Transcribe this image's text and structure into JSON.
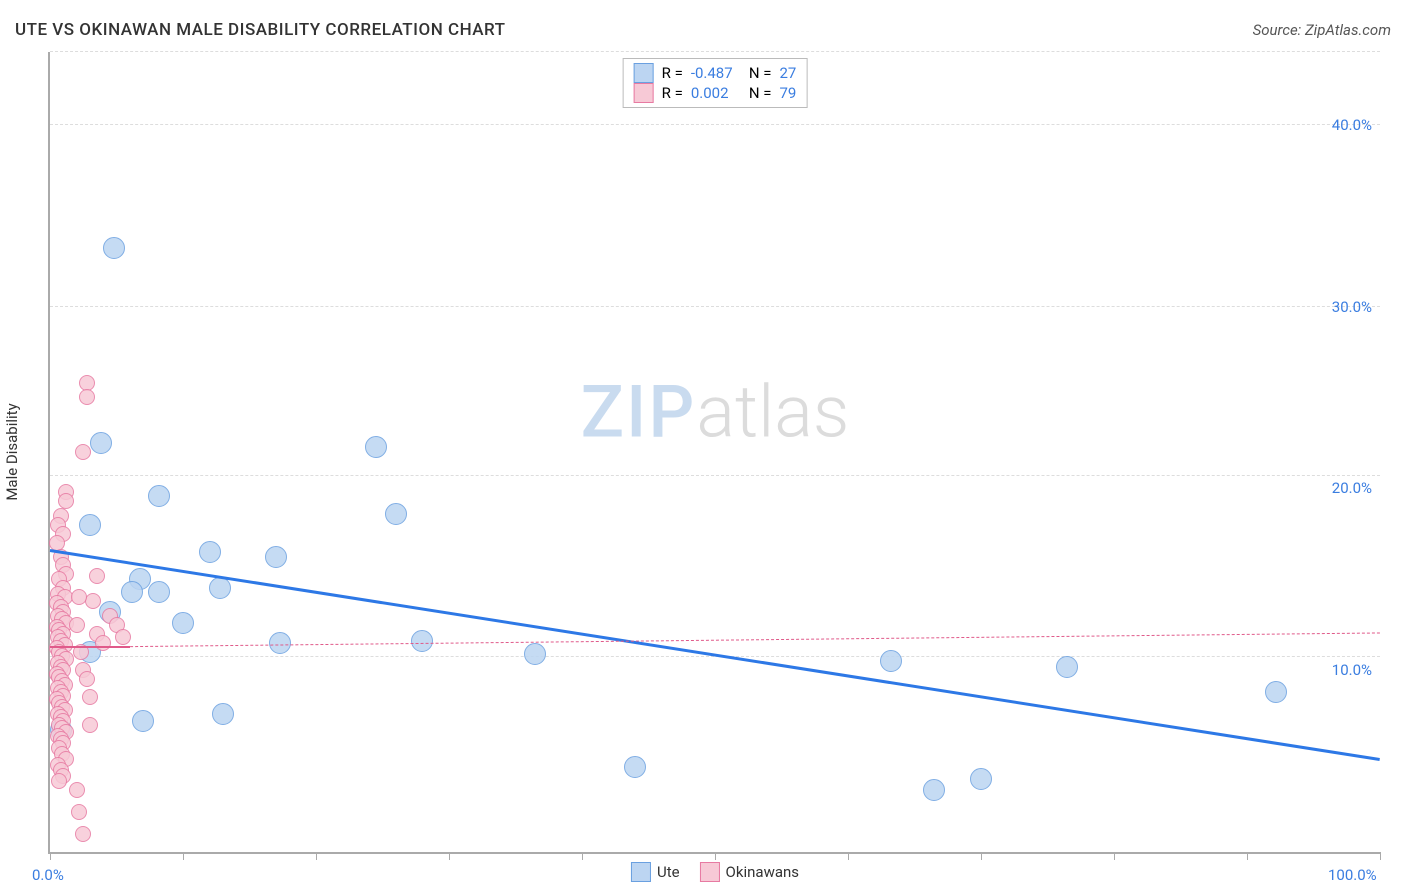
{
  "header": {
    "title": "UTE VS OKINAWAN MALE DISABILITY CORRELATION CHART",
    "source": "Source: ZipAtlas.com"
  },
  "watermark": {
    "zip": "ZIP",
    "atlas": "atlas"
  },
  "chart": {
    "type": "scatter",
    "xlim": [
      0,
      100
    ],
    "ylim": [
      0,
      44
    ],
    "x_ticks": [
      0,
      10,
      20,
      30,
      40,
      50,
      60,
      70,
      80,
      90,
      100
    ],
    "y_gridlines": [
      10.7,
      20.7,
      30.0,
      40.0,
      44.0
    ],
    "x_axis_labels": [
      {
        "val": 0,
        "text": "0.0%"
      },
      {
        "val": 100,
        "text": "100.0%"
      }
    ],
    "y_axis_labels": [
      {
        "val": 10,
        "text": "10.0%"
      },
      {
        "val": 20,
        "text": "20.0%"
      },
      {
        "val": 30,
        "text": "30.0%"
      },
      {
        "val": 40,
        "text": "40.0%"
      }
    ],
    "ylabel": "Male Disability",
    "axis_label_color": "#3a7de0",
    "colors": {
      "ute_fill": "#bcd5f2",
      "ute_stroke": "#6aa0e0",
      "oki_fill": "#f7c9d6",
      "oki_stroke": "#e77aa2",
      "ute_line": "#2d78e6",
      "oki_line": "#e05a8a"
    },
    "legend_top": {
      "rows": [
        {
          "color_key": "ute",
          "r_label": "R =",
          "r_val": "-0.487",
          "n_label": "N =",
          "n_val": "27"
        },
        {
          "color_key": "oki",
          "r_label": "R =",
          "r_val": "0.002",
          "n_label": "N =",
          "n_val": "79"
        }
      ]
    },
    "legend_bottom": [
      {
        "color_key": "ute",
        "label": "Ute"
      },
      {
        "color_key": "oki",
        "label": "Okinawans"
      }
    ],
    "trend_lines": [
      {
        "series": "ute",
        "x1": 0,
        "y1": 16.5,
        "x2": 100,
        "y2": 5.0,
        "width": 3,
        "dash": false
      },
      {
        "series": "oki",
        "x1": 0,
        "y1": 11.2,
        "x2": 100,
        "y2": 12.0,
        "width": 1,
        "dash": true
      },
      {
        "series": "oki",
        "x1": 0,
        "y1": 11.2,
        "x2": 6,
        "y2": 11.2,
        "width": 2.5,
        "dash": false
      }
    ],
    "series": [
      {
        "name": "ute",
        "radius": 10,
        "points": [
          [
            4.8,
            33.2
          ],
          [
            3.8,
            22.5
          ],
          [
            8.2,
            19.6
          ],
          [
            6.8,
            15.0
          ],
          [
            3.0,
            18.0
          ],
          [
            6.2,
            14.3
          ],
          [
            8.2,
            14.3
          ],
          [
            12.0,
            16.5
          ],
          [
            12.8,
            14.5
          ],
          [
            17.0,
            16.2
          ],
          [
            24.5,
            22.3
          ],
          [
            26.0,
            18.6
          ],
          [
            10.0,
            12.6
          ],
          [
            17.3,
            11.5
          ],
          [
            3.0,
            11.0
          ],
          [
            4.5,
            13.2
          ],
          [
            7.0,
            7.2
          ],
          [
            13.0,
            7.6
          ],
          [
            28.0,
            11.6
          ],
          [
            36.5,
            10.9
          ],
          [
            0.8,
            6.7
          ],
          [
            44.0,
            4.7
          ],
          [
            63.2,
            10.5
          ],
          [
            76.5,
            10.2
          ],
          [
            92.2,
            8.8
          ],
          [
            70.0,
            4.0
          ],
          [
            66.5,
            3.4
          ]
        ]
      },
      {
        "name": "oki",
        "radius": 7,
        "points": [
          [
            2.8,
            25.8
          ],
          [
            2.8,
            25.0
          ],
          [
            2.5,
            22.0
          ],
          [
            1.2,
            19.8
          ],
          [
            1.2,
            19.3
          ],
          [
            0.8,
            18.5
          ],
          [
            0.6,
            18.0
          ],
          [
            1.0,
            17.5
          ],
          [
            0.5,
            17.0
          ],
          [
            0.8,
            16.2
          ],
          [
            1.0,
            15.8
          ],
          [
            1.2,
            15.3
          ],
          [
            0.7,
            15.0
          ],
          [
            1.0,
            14.5
          ],
          [
            0.6,
            14.2
          ],
          [
            1.1,
            14.0
          ],
          [
            0.5,
            13.7
          ],
          [
            0.8,
            13.5
          ],
          [
            1.0,
            13.2
          ],
          [
            0.6,
            13.0
          ],
          [
            0.9,
            12.8
          ],
          [
            1.2,
            12.6
          ],
          [
            0.5,
            12.4
          ],
          [
            0.7,
            12.2
          ],
          [
            1.0,
            12.0
          ],
          [
            0.6,
            11.8
          ],
          [
            0.8,
            11.6
          ],
          [
            1.1,
            11.4
          ],
          [
            0.5,
            11.2
          ],
          [
            0.7,
            11.0
          ],
          [
            0.9,
            10.8
          ],
          [
            1.2,
            10.6
          ],
          [
            0.6,
            10.4
          ],
          [
            0.8,
            10.2
          ],
          [
            1.0,
            10.0
          ],
          [
            0.5,
            9.8
          ],
          [
            0.7,
            9.6
          ],
          [
            0.9,
            9.4
          ],
          [
            1.1,
            9.2
          ],
          [
            0.6,
            9.0
          ],
          [
            0.8,
            8.8
          ],
          [
            1.0,
            8.6
          ],
          [
            0.5,
            8.4
          ],
          [
            0.7,
            8.2
          ],
          [
            0.9,
            8.0
          ],
          [
            1.1,
            7.8
          ],
          [
            0.6,
            7.6
          ],
          [
            0.8,
            7.4
          ],
          [
            1.0,
            7.2
          ],
          [
            0.7,
            7.0
          ],
          [
            0.9,
            6.8
          ],
          [
            1.2,
            6.6
          ],
          [
            0.6,
            6.4
          ],
          [
            0.8,
            6.2
          ],
          [
            1.0,
            6.0
          ],
          [
            0.7,
            5.7
          ],
          [
            0.9,
            5.4
          ],
          [
            1.2,
            5.1
          ],
          [
            0.6,
            4.8
          ],
          [
            0.8,
            4.5
          ],
          [
            1.0,
            4.2
          ],
          [
            0.7,
            3.9
          ],
          [
            2.0,
            3.4
          ],
          [
            2.2,
            2.2
          ],
          [
            2.5,
            1.0
          ],
          [
            2.0,
            12.5
          ],
          [
            2.3,
            11.0
          ],
          [
            2.5,
            10.0
          ],
          [
            3.0,
            8.5
          ],
          [
            3.2,
            13.8
          ],
          [
            3.5,
            15.2
          ],
          [
            2.2,
            14.0
          ],
          [
            2.8,
            9.5
          ],
          [
            3.0,
            7.0
          ],
          [
            3.5,
            12.0
          ],
          [
            4.0,
            11.5
          ],
          [
            4.5,
            13.0
          ],
          [
            5.0,
            12.5
          ],
          [
            5.5,
            11.8
          ]
        ]
      }
    ]
  }
}
